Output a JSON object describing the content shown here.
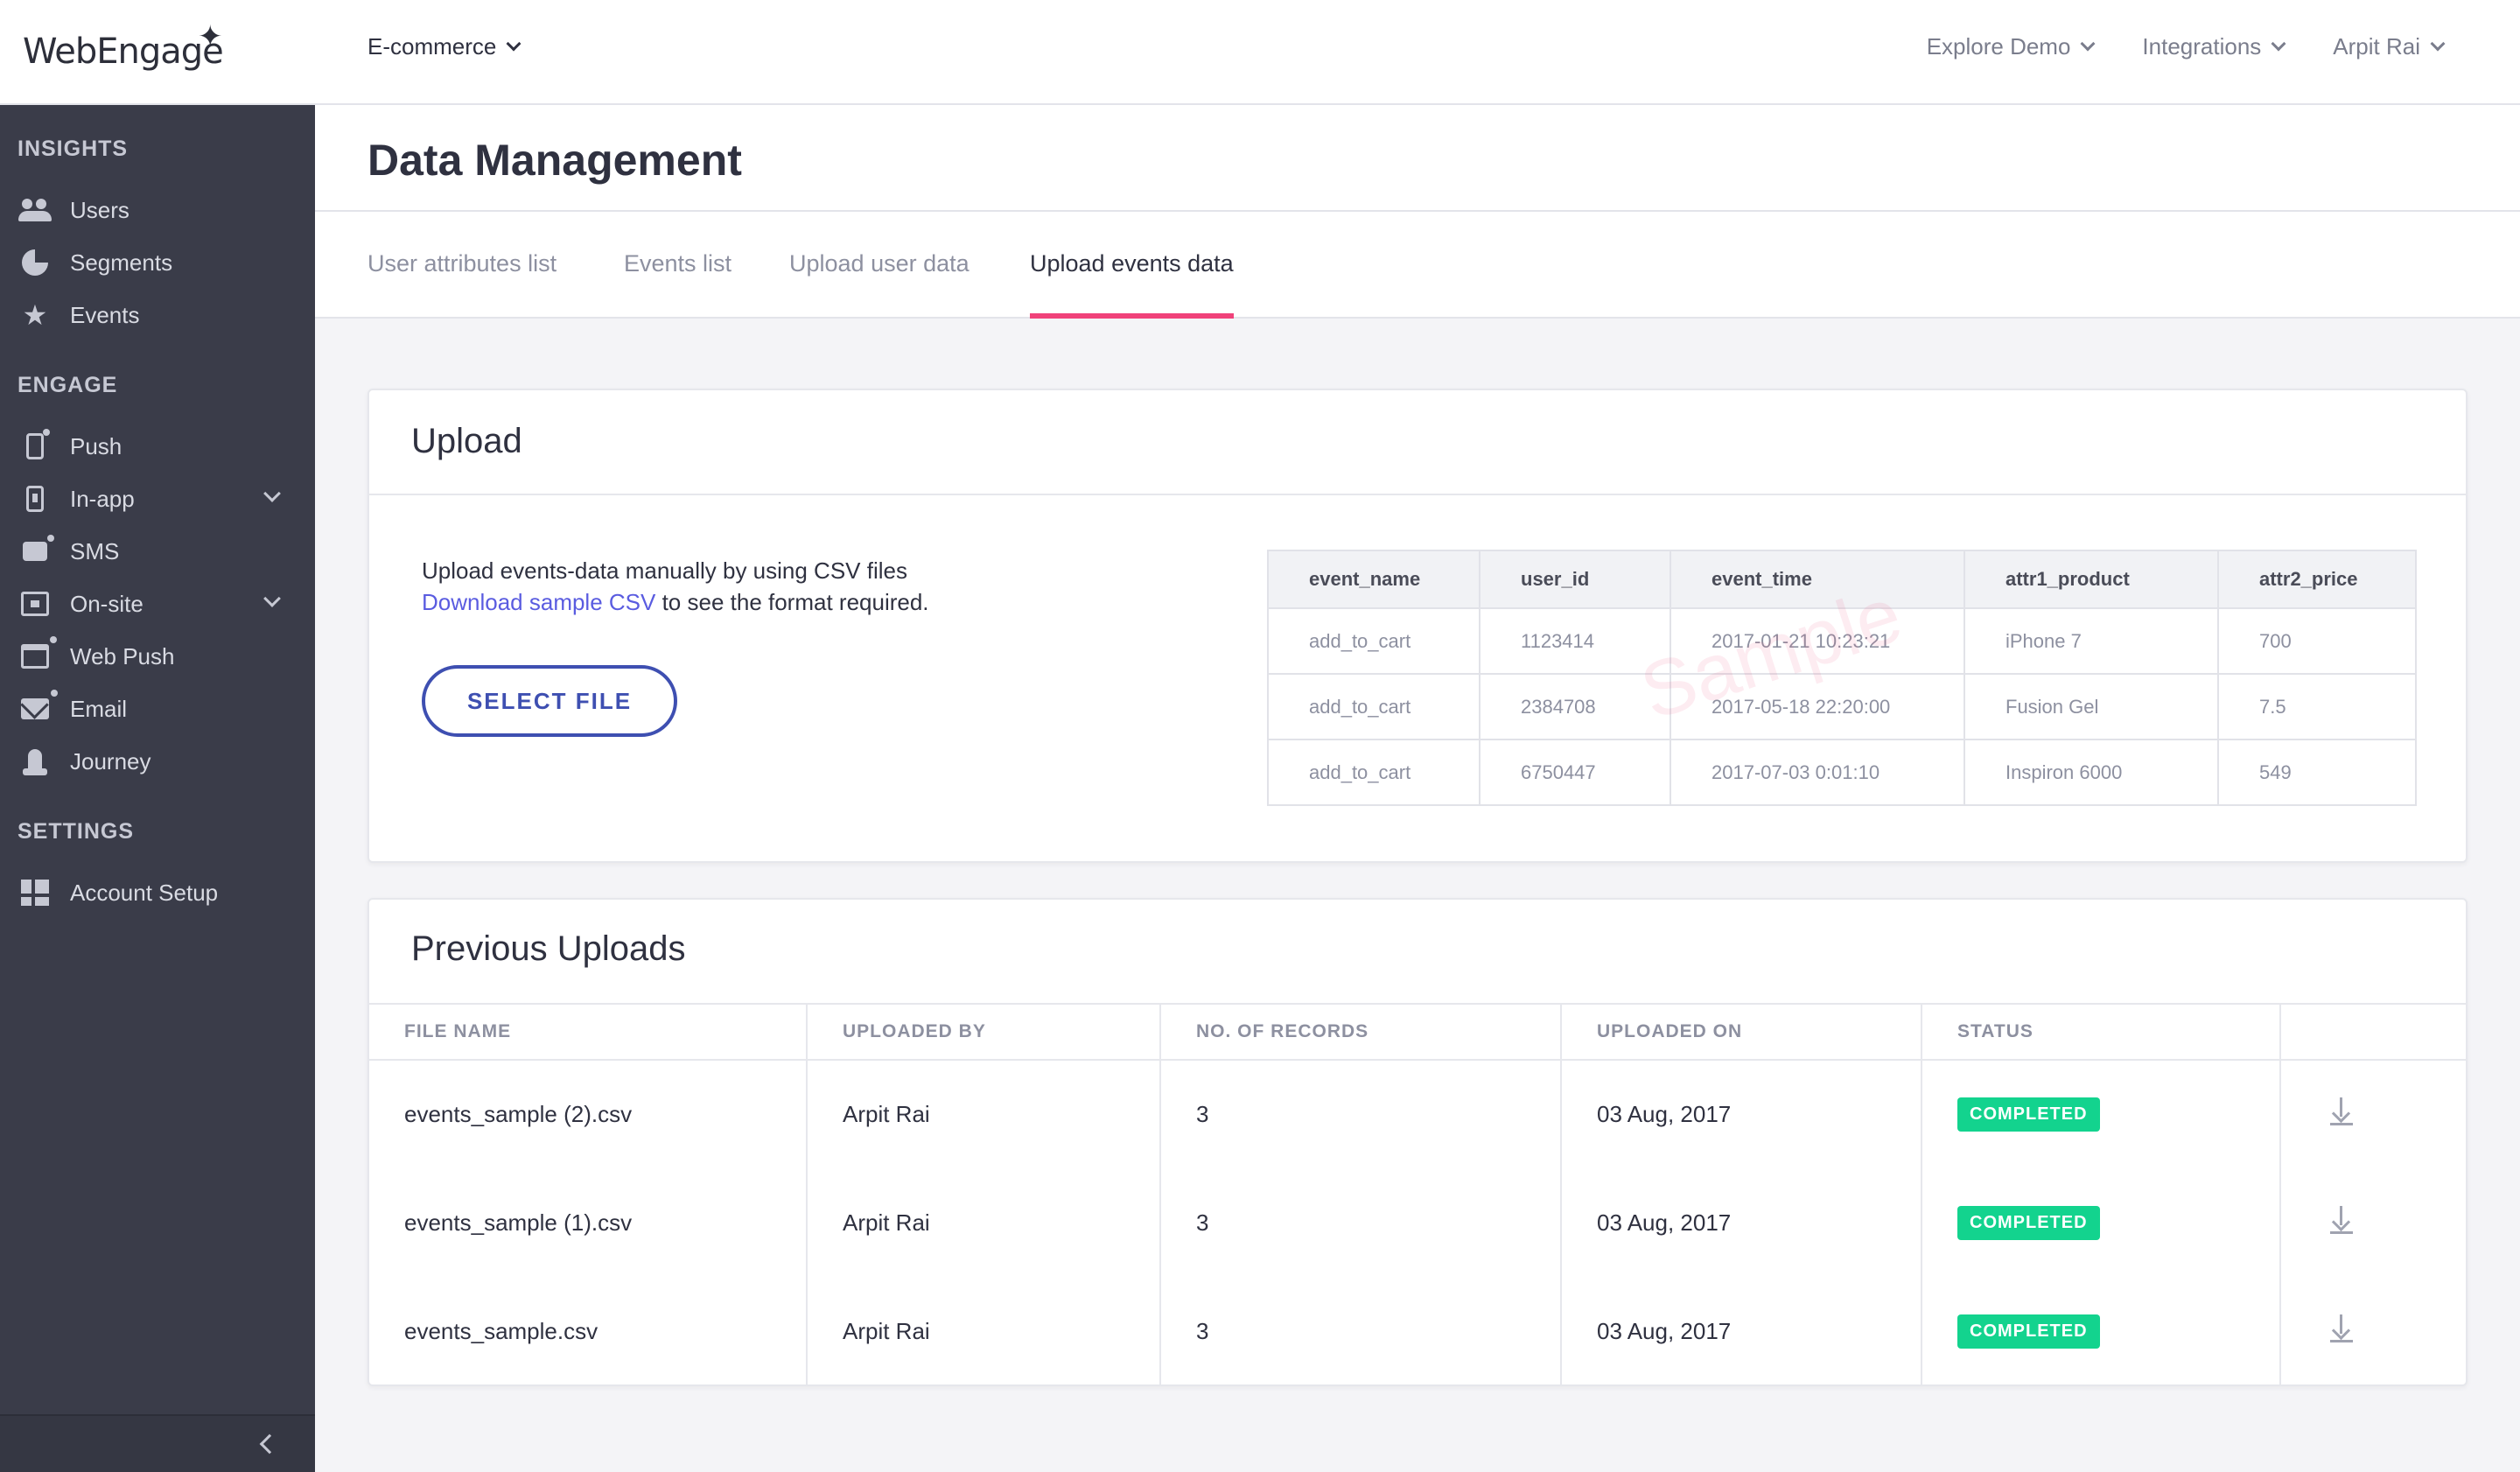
{
  "brand": {
    "logo_text": "WebEngage"
  },
  "header": {
    "project": "E-commerce",
    "nav": [
      "Explore Demo",
      "Integrations",
      "Arpit Rai"
    ]
  },
  "sidebar": {
    "sections": [
      "INSIGHTS",
      "ENGAGE",
      "SETTINGS"
    ],
    "insights": [
      "Users",
      "Segments",
      "Events"
    ],
    "engage": [
      "Push",
      "In-app",
      "SMS",
      "On-site",
      "Web Push",
      "Email",
      "Journey"
    ],
    "settings": [
      "Account Setup"
    ]
  },
  "page": {
    "title": "Data Management",
    "tabs": [
      "User attributes list",
      "Events list",
      "Upload user data",
      "Upload events data"
    ],
    "active_tab": 3
  },
  "upload": {
    "title": "Upload",
    "line1": "Upload events-data manually by using CSV files",
    "link": "Download sample CSV",
    "line2_rest": " to see the format required.",
    "button": "SELECT FILE",
    "watermark": "Sample",
    "sample_headers": [
      "event_name",
      "user_id",
      "event_time",
      "attr1_product",
      "attr2_price"
    ],
    "sample_rows": [
      [
        "add_to_cart",
        "1123414",
        "2017-01-21 10:23:21",
        "iPhone 7",
        "700"
      ],
      [
        "add_to_cart",
        "2384708",
        "2017-05-18 22:20:00",
        "Fusion Gel",
        "7.5"
      ],
      [
        "add_to_cart",
        "6750447",
        "2017-07-03 0:01:10",
        "Inspiron 6000",
        "549"
      ]
    ]
  },
  "previous": {
    "title": "Previous Uploads",
    "headers": [
      "FILE NAME",
      "UPLOADED BY",
      "NO. OF RECORDS",
      "UPLOADED ON",
      "STATUS"
    ],
    "rows": [
      {
        "file": "events_sample (2).csv",
        "by": "Arpit Rai",
        "records": "3",
        "on": "03 Aug, 2017",
        "status": "COMPLETED"
      },
      {
        "file": "events_sample (1).csv",
        "by": "Arpit Rai",
        "records": "3",
        "on": "03 Aug, 2017",
        "status": "COMPLETED"
      },
      {
        "file": "events_sample.csv",
        "by": "Arpit Rai",
        "records": "3",
        "on": "03 Aug, 2017",
        "status": "COMPLETED"
      }
    ]
  },
  "colors": {
    "accent": "#f0427a",
    "primary": "#3e4fb1",
    "success": "#13d38e",
    "sidebar": "#3a3c49"
  }
}
